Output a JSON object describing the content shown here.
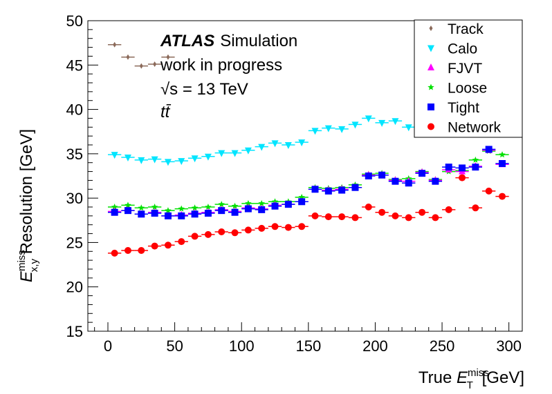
{
  "chart_data": {
    "type": "scatter",
    "title": "",
    "xlabel": {
      "pre": "True ",
      "sym": "E",
      "sup": "miss",
      "sub": "T",
      "post": " [GeV]"
    },
    "ylabel": {
      "sym": "E",
      "sup": "miss",
      "sub": "x,y",
      "post": " Resolution [GeV]"
    },
    "xlim": [
      -15,
      310
    ],
    "ylim": [
      15,
      50
    ],
    "xticks": [
      0,
      50,
      100,
      150,
      200,
      250,
      300
    ],
    "yticks": [
      15,
      20,
      25,
      30,
      35,
      40,
      45,
      50
    ],
    "xerr": 5,
    "annotations": {
      "atlas": "ATLAS",
      "simulation": "Simulation",
      "wip": "work in progress",
      "sqrt_s": "√s = 13 TeV",
      "process": "tt̄"
    },
    "legend_position": "top-right",
    "series": [
      {
        "name": "Track",
        "marker": "diamond",
        "color": "#8b6a5a",
        "x": [
          5,
          15,
          25,
          35,
          45
        ],
        "y": [
          47.3,
          45.9,
          44.9,
          45.1,
          45.9
        ]
      },
      {
        "name": "Calo",
        "marker": "triangle-down",
        "color": "#00e5ff",
        "x": [
          5,
          15,
          25,
          35,
          45,
          55,
          65,
          75,
          85,
          95,
          105,
          115,
          125,
          135,
          145,
          155,
          165,
          175,
          185,
          195,
          205,
          215,
          225,
          235,
          245,
          255,
          265,
          275,
          285,
          295
        ],
        "y": [
          34.9,
          34.6,
          34.3,
          34.4,
          34.1,
          34.2,
          34.5,
          34.7,
          35.1,
          35.1,
          35.4,
          35.8,
          36.2,
          36.0,
          36.3,
          37.6,
          37.9,
          37.8,
          38.3,
          39.0,
          38.5,
          38.7,
          38.0,
          39.7,
          39.6,
          39.4,
          39.7,
          39.6,
          39.7,
          39.6
        ]
      },
      {
        "name": "FJVT",
        "marker": "triangle-up",
        "color": "#ff00ff",
        "x": [
          5,
          15,
          25,
          35,
          45,
          55,
          65,
          75,
          85,
          95,
          105,
          115,
          125,
          135,
          145,
          155,
          165,
          175,
          185,
          195,
          205,
          215,
          225,
          235,
          245,
          255,
          265,
          275,
          285,
          295
        ],
        "y": [
          28.5,
          28.6,
          28.2,
          28.4,
          28.0,
          28.1,
          28.3,
          28.4,
          28.7,
          28.5,
          28.9,
          28.8,
          29.2,
          29.3,
          29.6,
          31.0,
          30.9,
          31.0,
          31.2,
          32.6,
          32.6,
          32.0,
          31.9,
          32.9,
          32.0,
          33.2,
          33.0,
          33.6,
          35.4,
          33.8
        ]
      },
      {
        "name": "Loose",
        "marker": "star",
        "color": "#00e000",
        "x": [
          5,
          15,
          25,
          35,
          45,
          55,
          65,
          75,
          85,
          95,
          105,
          115,
          125,
          135,
          145,
          155,
          165,
          175,
          185,
          195,
          205,
          215,
          225,
          235,
          245,
          255,
          265,
          275,
          285,
          295
        ],
        "y": [
          29.0,
          29.2,
          28.9,
          29.0,
          28.6,
          28.8,
          28.9,
          29.0,
          29.3,
          29.1,
          29.4,
          29.4,
          29.6,
          29.6,
          30.1,
          31.2,
          31.1,
          31.2,
          31.5,
          32.7,
          32.8,
          32.1,
          32.2,
          33.0,
          32.1,
          33.0,
          33.1,
          34.3,
          35.3,
          34.9
        ]
      },
      {
        "name": "Tight",
        "marker": "square",
        "color": "#0000ff",
        "x": [
          5,
          15,
          25,
          35,
          45,
          55,
          65,
          75,
          85,
          95,
          105,
          115,
          125,
          135,
          145,
          155,
          165,
          175,
          185,
          195,
          205,
          215,
          225,
          235,
          245,
          255,
          265,
          275,
          285,
          295
        ],
        "y": [
          28.4,
          28.6,
          28.2,
          28.3,
          28.0,
          28.0,
          28.2,
          28.3,
          28.6,
          28.4,
          28.8,
          28.7,
          29.1,
          29.3,
          29.6,
          31.0,
          30.8,
          30.9,
          31.2,
          32.5,
          32.6,
          31.9,
          31.7,
          32.8,
          31.9,
          33.5,
          33.4,
          33.5,
          35.5,
          33.9
        ]
      },
      {
        "name": "Network",
        "marker": "circle",
        "color": "#ff0000",
        "x": [
          5,
          15,
          25,
          35,
          45,
          55,
          65,
          75,
          85,
          95,
          105,
          115,
          125,
          135,
          145,
          155,
          165,
          175,
          185,
          195,
          205,
          215,
          225,
          235,
          245,
          255,
          265,
          275,
          285,
          295
        ],
        "y": [
          23.8,
          24.1,
          24.1,
          24.6,
          24.7,
          25.1,
          25.7,
          25.9,
          26.2,
          26.1,
          26.4,
          26.6,
          26.8,
          26.7,
          26.8,
          28.0,
          27.9,
          27.9,
          27.8,
          29.0,
          28.4,
          28.0,
          27.8,
          28.4,
          27.8,
          28.7,
          32.3,
          28.9,
          30.8,
          30.2
        ]
      }
    ]
  }
}
